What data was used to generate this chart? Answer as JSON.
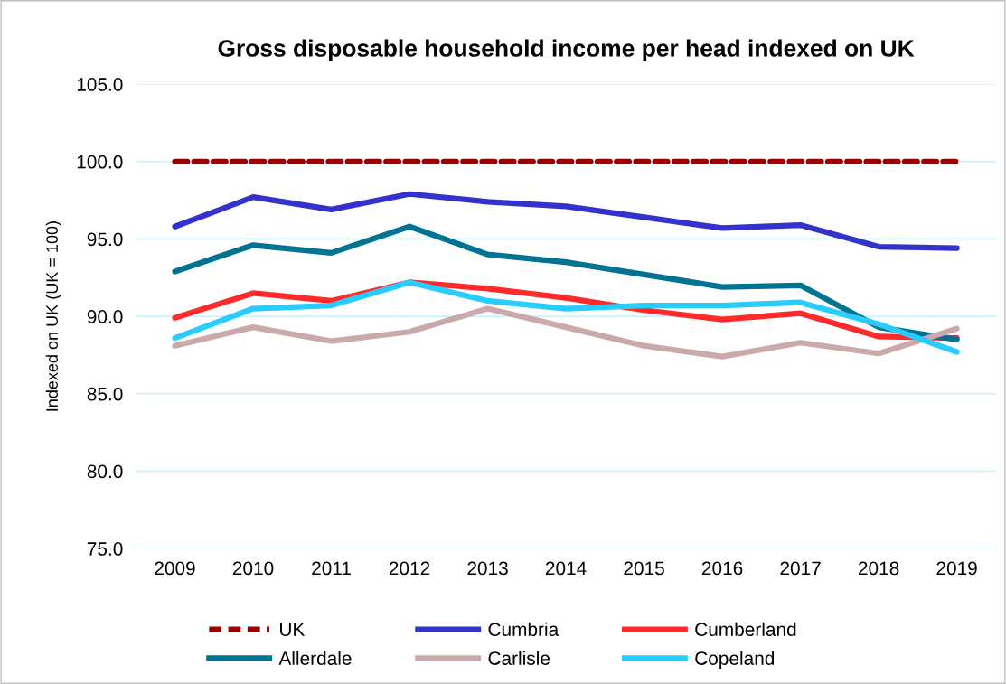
{
  "chart_data": {
    "type": "line",
    "title": "Gross disposable household income per head indexed on UK",
    "ylabel": "Indexed on UK (UK = 100)",
    "categories": [
      "2009",
      "2010",
      "2011",
      "2012",
      "2013",
      "2014",
      "2015",
      "2016",
      "2017",
      "2018",
      "2019"
    ],
    "series": [
      {
        "name": "UK",
        "color": "#990000",
        "line_style": "dashed",
        "values": [
          100,
          100,
          100,
          100,
          100,
          100,
          100,
          100,
          100,
          100,
          100
        ]
      },
      {
        "name": "Cumbria",
        "color": "#3333cc",
        "values": [
          95.8,
          97.7,
          96.9,
          97.9,
          97.4,
          97.1,
          96.4,
          95.7,
          95.9,
          94.5,
          94.4
        ]
      },
      {
        "name": "Cumberland",
        "color": "#ff2a2a",
        "values": [
          89.9,
          91.5,
          91.0,
          92.2,
          91.8,
          91.2,
          90.4,
          89.8,
          90.2,
          88.7,
          88.6
        ]
      },
      {
        "name": "Allerdale",
        "color": "#007393",
        "values": [
          92.9,
          94.6,
          94.1,
          95.8,
          94.0,
          93.5,
          92.7,
          91.9,
          92.0,
          89.3,
          88.5
        ]
      },
      {
        "name": "Carlisle",
        "color": "#c9a9a9",
        "values": [
          88.1,
          89.3,
          88.4,
          89.0,
          90.5,
          89.3,
          88.1,
          87.4,
          88.3,
          87.6,
          89.2
        ]
      },
      {
        "name": "Copeland",
        "color": "#29ccff",
        "values": [
          88.6,
          90.5,
          90.7,
          92.2,
          91.0,
          90.5,
          90.7,
          90.7,
          90.9,
          89.5,
          87.7
        ]
      }
    ],
    "ylim": [
      75,
      105
    ],
    "yticks": [
      {
        "value": 75,
        "label": "75.0"
      },
      {
        "value": 80,
        "label": "80.0"
      },
      {
        "value": 85,
        "label": "85.0"
      },
      {
        "value": 90,
        "label": "90.0"
      },
      {
        "value": 95,
        "label": "95.0"
      },
      {
        "value": 100,
        "label": "100.0"
      },
      {
        "value": 105,
        "label": "105.0"
      }
    ],
    "grid": "y",
    "legend": "bottom",
    "line_style": "solid",
    "marker": "none"
  }
}
